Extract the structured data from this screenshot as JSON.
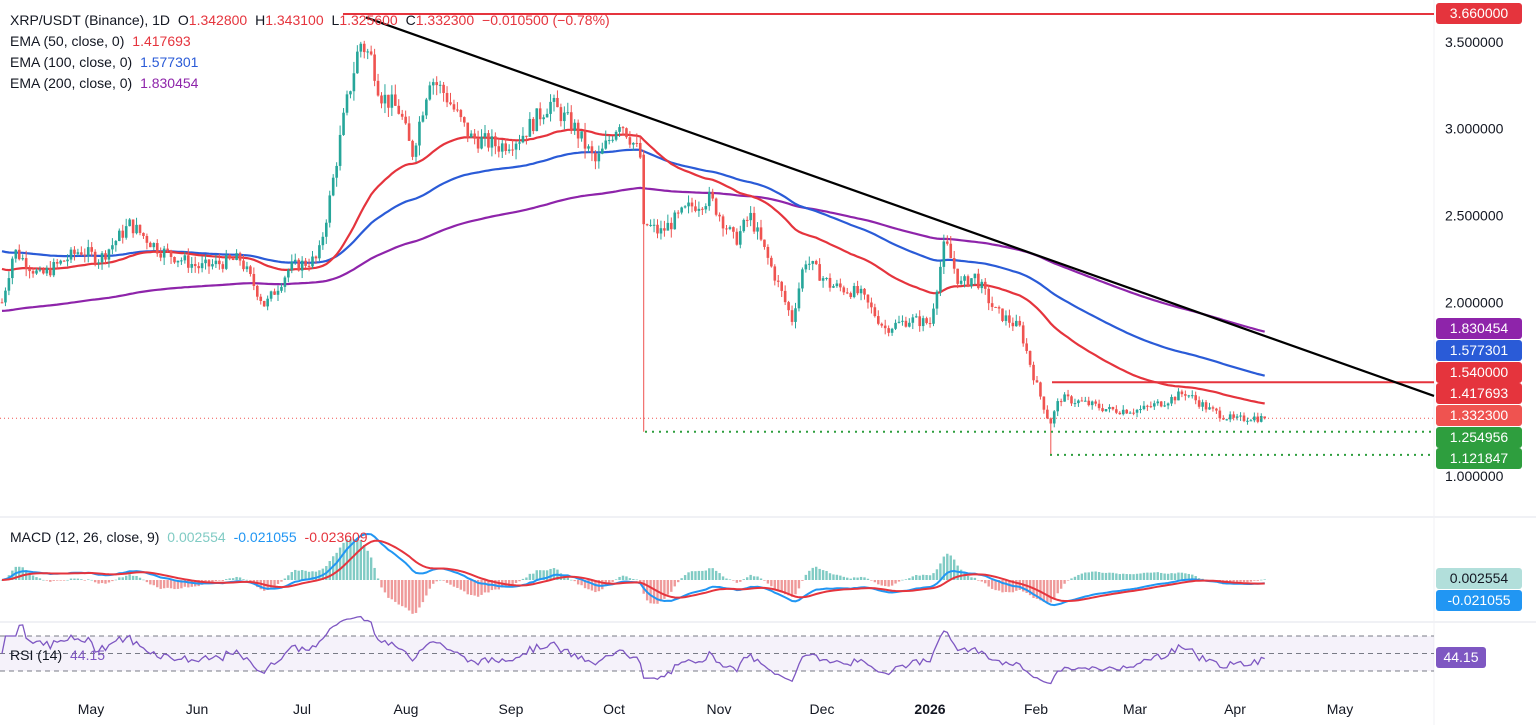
{
  "colors": {
    "ema50": "#e5343d",
    "ema100": "#2a5bd7",
    "ema200": "#8e24aa",
    "up": "#26a69a",
    "down": "#ef5350",
    "resistance": "#e5343d",
    "support": "#2e9e3e",
    "trendline": "#000000",
    "macd": "#2196f3",
    "signal": "#e5343d",
    "rsi": "#7e57c2"
  },
  "header": {
    "symbol": "XRP/USDT (Binance), 1D",
    "o_label": "O",
    "o_value": "1.342800",
    "h_label": "H",
    "h_value": "1.343100",
    "l_label": "L",
    "l_value": "1.325600",
    "c_label": "C",
    "c_value": "1.332300",
    "change": "−0.010500 (−0.78%)"
  },
  "ema_legend": [
    {
      "label": "EMA (50, close, 0)",
      "value": "1.417693"
    },
    {
      "label": "EMA (100, close, 0)",
      "value": "1.577301"
    },
    {
      "label": "EMA (200, close, 0)",
      "value": "1.830454"
    }
  ],
  "macd_legend": {
    "label": "MACD (12, 26, close, 9)",
    "hist": "0.002554",
    "macd": "-0.021055",
    "signal": "-0.023609"
  },
  "rsi_legend": {
    "label": "RSI (14)",
    "value": "44.15"
  },
  "chart_data": {
    "type": "candlestick",
    "symbol": "XRP/USDT",
    "timeframe": "1D",
    "x_axis_labels": [
      "May",
      "Jun",
      "Jul",
      "Aug",
      "Sep",
      "Oct",
      "Nov",
      "Dec",
      "2026",
      "Feb",
      "Mar",
      "Apr",
      "May"
    ],
    "y_axis_labels": [
      "3.500000",
      "3.000000",
      "2.500000",
      "2.000000",
      "1.000000"
    ],
    "ylim": [
      0.88,
      3.68
    ],
    "price_tags": [
      {
        "value": "3.660000",
        "kind": "resistance"
      },
      {
        "value": "1.830454",
        "kind": "ema200"
      },
      {
        "value": "1.577301",
        "kind": "ema100"
      },
      {
        "value": "1.540000",
        "kind": "resistance"
      },
      {
        "value": "1.417693",
        "kind": "ema50"
      },
      {
        "value": "1.332300",
        "kind": "last"
      },
      {
        "value": "1.254956",
        "kind": "support"
      },
      {
        "value": "1.121847",
        "kind": "support"
      }
    ],
    "price_path_approx": [
      {
        "x": "Apr",
        "price": 2.05
      },
      {
        "x": "May",
        "price": 2.25
      },
      {
        "x": "Jun",
        "price": 2.15
      },
      {
        "x": "Jun-late",
        "price": 2.0
      },
      {
        "x": "Jul",
        "price": 2.25
      },
      {
        "x": "Jul-mid",
        "price": 3.55
      },
      {
        "x": "Aug",
        "price": 3.0
      },
      {
        "x": "Sep",
        "price": 2.85
      },
      {
        "x": "Oct",
        "price": 2.95
      },
      {
        "x": "Oct-10",
        "price": 2.45
      },
      {
        "x": "Nov",
        "price": 2.4
      },
      {
        "x": "Dec",
        "price": 2.05
      },
      {
        "x": "2026",
        "price": 2.1
      },
      {
        "x": "Jan-06",
        "price": 2.38
      },
      {
        "x": "Feb",
        "price": 1.5
      },
      {
        "x": "Feb-05",
        "price": 1.2
      },
      {
        "x": "Mar",
        "price": 1.4
      },
      {
        "x": "Apr",
        "price": 1.33
      }
    ],
    "ema_latest": {
      "ema50": 1.417693,
      "ema100": 1.577301,
      "ema200": 1.830454
    },
    "horizontal_levels": [
      {
        "price": 3.66,
        "type": "resistance"
      },
      {
        "price": 1.54,
        "type": "resistance"
      },
      {
        "price": 1.254956,
        "type": "support-dotted"
      },
      {
        "price": 1.121847,
        "type": "support-dotted"
      }
    ],
    "trendline": {
      "from": {
        "x": "Jul-mid",
        "price": 3.64
      },
      "to": {
        "x": "Apr-end",
        "price": 1.53
      }
    },
    "macd": {
      "hist": 0.002554,
      "macd": -0.021055,
      "signal": -0.023609,
      "tags": [
        "0.002554",
        "-0.021055"
      ]
    },
    "rsi": {
      "period": 14,
      "value": 44.15,
      "tag": "44.15"
    }
  }
}
